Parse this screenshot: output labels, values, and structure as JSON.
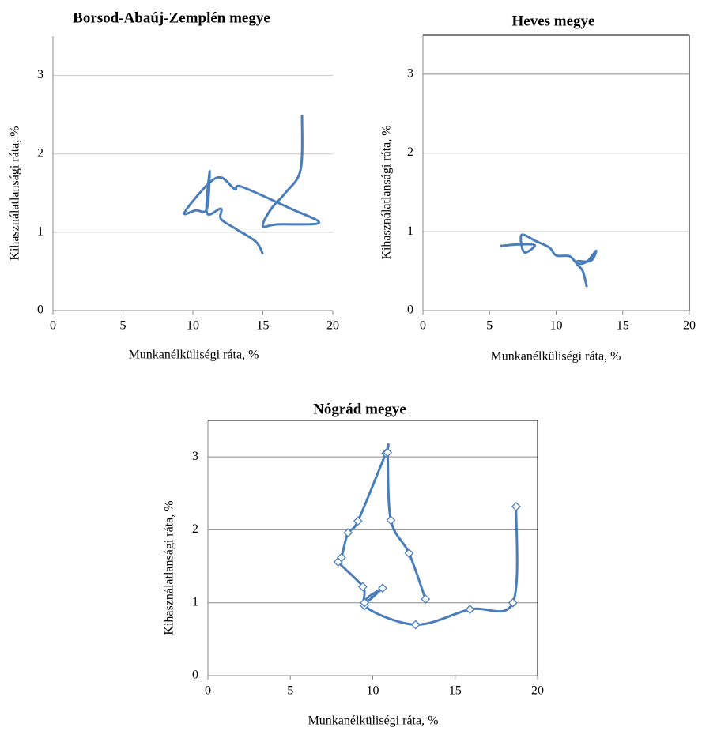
{
  "chart_data": [
    {
      "type": "line",
      "title": "Borsod-Abaúj-Zemplén megye",
      "x_label": "Munkanélküliségi ráta, %",
      "y_label": "Kihasználatlansági ráta, %",
      "x": [
        17.8,
        17.7,
        16.6,
        15.6,
        15.0,
        16.0,
        19.0,
        17.0,
        13.5,
        13.0,
        12.0,
        11.0,
        9.4,
        10.2,
        11.0,
        11.2,
        11.0,
        12.0,
        12.0,
        13.0,
        14.5,
        15.0
      ],
      "values": [
        2.5,
        1.8,
        1.5,
        1.3,
        1.08,
        1.1,
        1.12,
        1.3,
        1.58,
        1.55,
        1.7,
        1.6,
        1.25,
        1.28,
        1.3,
        1.78,
        1.25,
        1.3,
        1.17,
        1.05,
        0.88,
        0.72
      ],
      "color": "#4a7ebb",
      "markers": false,
      "box": false,
      "grid": true,
      "grid_color": "#c8c8c8",
      "xlim": [
        0,
        20
      ],
      "ylim": [
        0,
        3.5
      ],
      "xticks": [
        0,
        5,
        10,
        15,
        20
      ],
      "yticks": [
        0,
        1,
        2,
        3
      ]
    },
    {
      "type": "line",
      "title": "Heves megye",
      "x_label": "Munkanélküliségi ráta, %",
      "y_label": "Kihasználatlansági ráta, %",
      "x": [
        5.8,
        7.2,
        8.4,
        7.6,
        7.4,
        8.5,
        9.5,
        10.0,
        11.0,
        11.6,
        12.3,
        13.0,
        12.6,
        11.5,
        12.0,
        12.3
      ],
      "values": [
        0.82,
        0.84,
        0.83,
        0.74,
        0.96,
        0.88,
        0.8,
        0.7,
        0.69,
        0.6,
        0.62,
        0.76,
        0.63,
        0.62,
        0.5,
        0.3
      ],
      "color": "#4a7ebb",
      "markers": false,
      "box": true,
      "grid": true,
      "grid_color": "#888888",
      "xlim": [
        0,
        20
      ],
      "ylim": [
        0,
        3.5
      ],
      "xticks": [
        0,
        5,
        10,
        15,
        20
      ],
      "yticks": [
        0,
        1,
        2,
        3
      ]
    },
    {
      "type": "line",
      "title": "Nógrád megye",
      "x_label": "Munkanélküliségi ráta, %",
      "y_label": "Kihasználatlansági ráta, %",
      "x": [
        18.7,
        18.5,
        15.9,
        12.6,
        9.5,
        10.6,
        9.5,
        9.4,
        7.9,
        8.1,
        8.5,
        9.1,
        10.8,
        10.9,
        11.1,
        12.2,
        13.2
      ],
      "values": [
        2.32,
        1.0,
        0.91,
        0.7,
        0.96,
        1.2,
        1.0,
        1.22,
        1.56,
        1.62,
        1.96,
        2.12,
        3.05,
        3.06,
        2.13,
        1.68,
        1.05
      ],
      "color": "#4a7ebb",
      "markers": true,
      "box": true,
      "grid": true,
      "grid_color": "#888888",
      "xlim": [
        0,
        20
      ],
      "ylim": [
        0,
        3.5
      ],
      "xticks": [
        0,
        5,
        10,
        15,
        20
      ],
      "yticks": [
        0,
        1,
        2,
        3
      ]
    }
  ]
}
